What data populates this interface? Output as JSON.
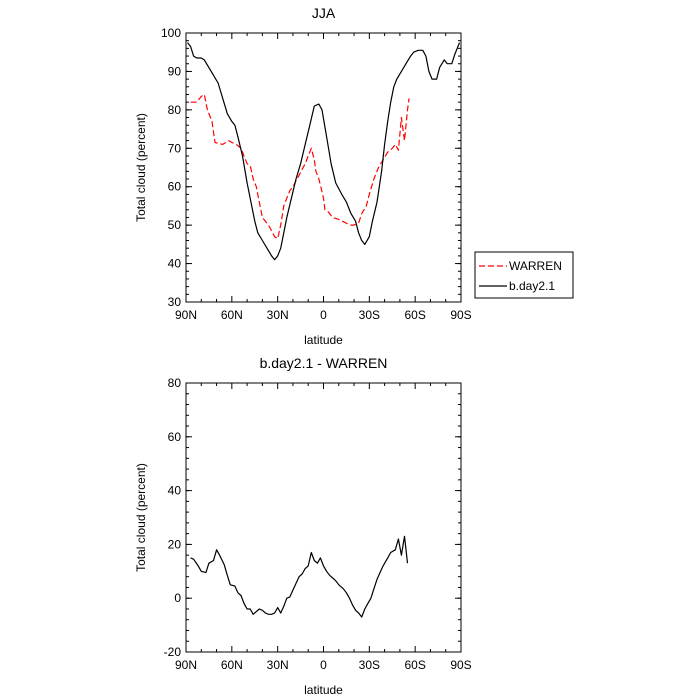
{
  "chart_data": [
    {
      "type": "line",
      "title": "JJA",
      "xlabel": "latitude",
      "ylabel": "Total cloud (percent)",
      "xlim": [
        -90,
        90
      ],
      "ylim": [
        30,
        100
      ],
      "x_reversed": true,
      "xticks": [
        {
          "value": 90,
          "label": "90N"
        },
        {
          "value": 60,
          "label": "60N"
        },
        {
          "value": 30,
          "label": "30N"
        },
        {
          "value": 0,
          "label": "0"
        },
        {
          "value": -30,
          "label": "30S"
        },
        {
          "value": -60,
          "label": "60S"
        },
        {
          "value": -90,
          "label": "90S"
        }
      ],
      "yticks": [
        30,
        40,
        50,
        60,
        70,
        80,
        90,
        100
      ],
      "grid": false,
      "legend": {
        "placement": "right",
        "entries": [
          "WARREN",
          "b.day2.1"
        ]
      },
      "series": [
        {
          "name": "WARREN",
          "color": "#ff0000",
          "dash": "dashed",
          "points": [
            [
              87,
              82
            ],
            [
              83,
              82
            ],
            [
              80,
              83.5
            ],
            [
              78,
              84
            ],
            [
              76,
              80
            ],
            [
              73,
              77
            ],
            [
              71,
              71.5
            ],
            [
              66,
              71
            ],
            [
              62,
              72
            ],
            [
              60,
              71.5
            ],
            [
              57,
              71
            ],
            [
              54,
              70
            ],
            [
              50,
              66
            ],
            [
              48,
              65.5
            ],
            [
              46,
              62
            ],
            [
              44,
              60
            ],
            [
              42,
              56
            ],
            [
              40,
              52
            ],
            [
              38,
              51
            ],
            [
              36,
              50
            ],
            [
              34,
              48.5
            ],
            [
              32,
              47
            ],
            [
              30,
              46.5
            ],
            [
              28,
              50
            ],
            [
              26,
              55
            ],
            [
              24,
              57
            ],
            [
              22,
              59
            ],
            [
              20,
              60
            ],
            [
              18,
              61.5
            ],
            [
              16,
              63
            ],
            [
              14,
              64.5
            ],
            [
              12,
              66
            ],
            [
              10,
              68
            ],
            [
              8,
              70
            ],
            [
              6,
              67
            ],
            [
              5,
              64
            ],
            [
              3,
              62
            ],
            [
              0,
              57
            ],
            [
              -1,
              54
            ],
            [
              -3,
              53.5
            ],
            [
              -6,
              52
            ],
            [
              -10,
              51.5
            ],
            [
              -15,
              50.5
            ],
            [
              -18,
              50
            ],
            [
              -20,
              50
            ],
            [
              -23,
              50.5
            ],
            [
              -25,
              53
            ],
            [
              -28,
              55
            ],
            [
              -30,
              58
            ],
            [
              -33,
              62
            ],
            [
              -36,
              65
            ],
            [
              -39,
              67
            ],
            [
              -42,
              69
            ],
            [
              -45,
              70
            ],
            [
              -47,
              71
            ],
            [
              -49,
              69.5
            ],
            [
              -51,
              78
            ],
            [
              -53,
              72
            ],
            [
              -55,
              80
            ],
            [
              -56,
              83
            ]
          ]
        },
        {
          "name": "b.day2.1",
          "color": "#000000",
          "dash": "solid",
          "points": [
            [
              89,
              97.5
            ],
            [
              87,
              96.5
            ],
            [
              85,
              94
            ],
            [
              83,
              93.5
            ],
            [
              80,
              93.5
            ],
            [
              78,
              93
            ],
            [
              75,
              91
            ],
            [
              72,
              89
            ],
            [
              69,
              87
            ],
            [
              66,
              83
            ],
            [
              63,
              79
            ],
            [
              60,
              77
            ],
            [
              58,
              76
            ],
            [
              56,
              73
            ],
            [
              53,
              68
            ],
            [
              50,
              61
            ],
            [
              47,
              55
            ],
            [
              45,
              51
            ],
            [
              43,
              48
            ],
            [
              40,
              46
            ],
            [
              37,
              44
            ],
            [
              34,
              42
            ],
            [
              32,
              41
            ],
            [
              30,
              42
            ],
            [
              28,
              44
            ],
            [
              26,
              48
            ],
            [
              24,
              52
            ],
            [
              21,
              57
            ],
            [
              18,
              62
            ],
            [
              15,
              66
            ],
            [
              12,
              71
            ],
            [
              9,
              76
            ],
            [
              6,
              81
            ],
            [
              3,
              81.5
            ],
            [
              1,
              80
            ],
            [
              -2,
              73
            ],
            [
              -5,
              66
            ],
            [
              -8,
              61
            ],
            [
              -12,
              58
            ],
            [
              -15,
              56
            ],
            [
              -18,
              53
            ],
            [
              -21,
              51
            ],
            [
              -23,
              48
            ],
            [
              -25,
              46
            ],
            [
              -27,
              45
            ],
            [
              -30,
              47
            ],
            [
              -32,
              51
            ],
            [
              -35,
              56
            ],
            [
              -38,
              64
            ],
            [
              -40,
              71
            ],
            [
              -42,
              77
            ],
            [
              -44,
              82
            ],
            [
              -46,
              86
            ],
            [
              -48,
              88
            ],
            [
              -51,
              90
            ],
            [
              -54,
              92
            ],
            [
              -57,
              94
            ],
            [
              -59,
              95
            ],
            [
              -62,
              95.5
            ],
            [
              -65,
              95.5
            ],
            [
              -67,
              94
            ],
            [
              -69,
              90
            ],
            [
              -71,
              88
            ],
            [
              -74,
              88
            ],
            [
              -76,
              91
            ],
            [
              -79,
              93
            ],
            [
              -81,
              92
            ],
            [
              -84,
              92
            ],
            [
              -86,
              94.5
            ],
            [
              -89,
              97.5
            ]
          ]
        }
      ]
    },
    {
      "type": "line",
      "title": "b.day2.1 - WARREN",
      "xlabel": "latitude",
      "ylabel": "Total cloud (percent)",
      "xlim": [
        -90,
        90
      ],
      "ylim": [
        -20,
        80
      ],
      "x_reversed": true,
      "xticks": [
        {
          "value": 90,
          "label": "90N"
        },
        {
          "value": 60,
          "label": "60N"
        },
        {
          "value": 30,
          "label": "30N"
        },
        {
          "value": 0,
          "label": "0"
        },
        {
          "value": -30,
          "label": "30S"
        },
        {
          "value": -60,
          "label": "60S"
        },
        {
          "value": -90,
          "label": "90S"
        }
      ],
      "yticks": [
        -20,
        0,
        20,
        40,
        60,
        80
      ],
      "grid": false,
      "series": [
        {
          "color": "#000000",
          "dash": "solid",
          "points": [
            [
              87,
              15
            ],
            [
              85,
              14.5
            ],
            [
              82,
              12
            ],
            [
              80,
              10
            ],
            [
              77,
              9.5
            ],
            [
              75,
              13
            ],
            [
              72,
              14
            ],
            [
              70,
              18
            ],
            [
              68,
              16
            ],
            [
              65,
              12.5
            ],
            [
              63,
              8.5
            ],
            [
              61,
              5
            ],
            [
              58,
              4.5
            ],
            [
              56,
              2
            ],
            [
              54,
              1
            ],
            [
              52,
              -2
            ],
            [
              50,
              -4
            ],
            [
              48,
              -4
            ],
            [
              46,
              -6
            ],
            [
              44,
              -5
            ],
            [
              42,
              -4
            ],
            [
              40,
              -4.5
            ],
            [
              38,
              -5.5
            ],
            [
              36,
              -6
            ],
            [
              34,
              -6
            ],
            [
              32,
              -5.5
            ],
            [
              30,
              -3.5
            ],
            [
              28,
              -5.5
            ],
            [
              26,
              -3
            ],
            [
              24,
              0
            ],
            [
              22,
              0.5
            ],
            [
              20,
              3
            ],
            [
              18,
              5.5
            ],
            [
              16,
              8
            ],
            [
              14,
              9
            ],
            [
              12,
              11
            ],
            [
              10,
              12
            ],
            [
              8,
              17
            ],
            [
              6,
              14
            ],
            [
              4,
              13
            ],
            [
              2,
              15
            ],
            [
              0,
              12
            ],
            [
              -2,
              10
            ],
            [
              -4,
              8.5
            ],
            [
              -6,
              7.5
            ],
            [
              -8,
              6.5
            ],
            [
              -10,
              5
            ],
            [
              -13,
              3.5
            ],
            [
              -15,
              2
            ],
            [
              -17,
              0
            ],
            [
              -19,
              -2.5
            ],
            [
              -21,
              -4.5
            ],
            [
              -23,
              -5.5
            ],
            [
              -25,
              -7
            ],
            [
              -27,
              -4
            ],
            [
              -29,
              -2
            ],
            [
              -31,
              0
            ],
            [
              -33,
              3.5
            ],
            [
              -35,
              7
            ],
            [
              -37,
              9.5
            ],
            [
              -39,
              12
            ],
            [
              -42,
              15
            ],
            [
              -44,
              17
            ],
            [
              -47,
              18
            ],
            [
              -49,
              22
            ],
            [
              -51,
              16
            ],
            [
              -53,
              23
            ],
            [
              -55,
              13
            ]
          ]
        }
      ]
    }
  ]
}
